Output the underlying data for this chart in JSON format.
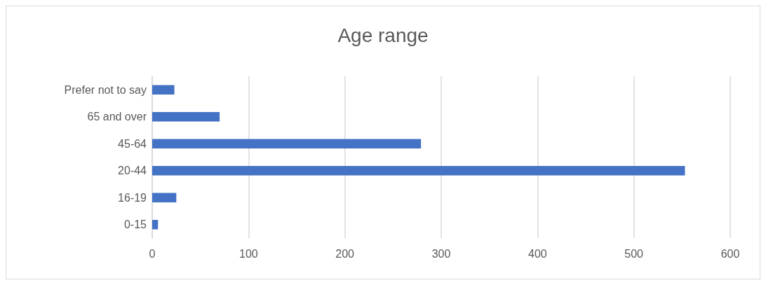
{
  "chart_data": {
    "type": "bar",
    "title": "Age range",
    "orientation": "horizontal",
    "categories": [
      "Prefer not to say",
      "65 and over",
      "45-64",
      "20-44",
      "16-19",
      "0-15"
    ],
    "values": [
      23,
      70,
      279,
      553,
      25,
      6
    ],
    "color": "#4472c4",
    "xlim": [
      0,
      600
    ],
    "xticks": [
      0,
      100,
      200,
      300,
      400,
      500,
      600
    ],
    "grid": "x"
  }
}
